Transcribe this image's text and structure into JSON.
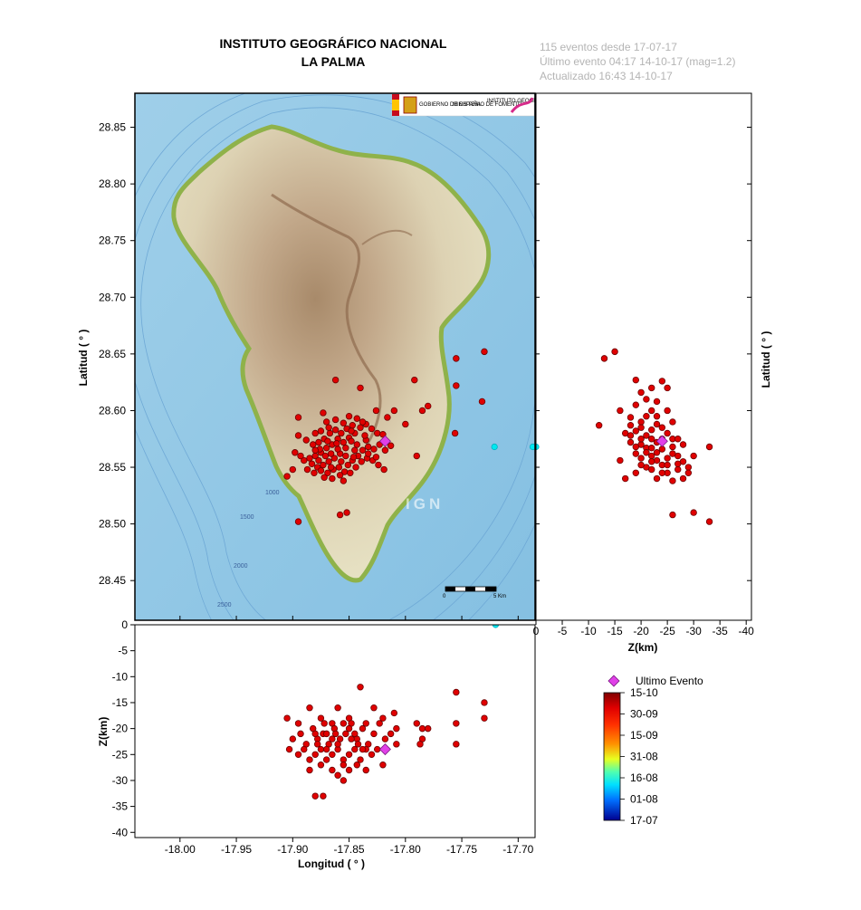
{
  "header": {
    "title_line1": "INSTITUTO GEOGRÁFICO NACIONAL",
    "title_line2": "LA PALMA",
    "info_line1": "115 eventos desde 17-07-17",
    "info_line2": "Último evento 04:17 14-10-17  (mag=1.2)",
    "info_line3": "Actualizado   16:43  14-10-17"
  },
  "map": {
    "watermark": "IGN",
    "scale_start": "0",
    "scale_end": "5 Km",
    "contour_labels": [
      "200",
      "1000",
      "1500",
      "2000",
      "2500"
    ],
    "logo": {
      "gobierno": "GOBIERNO DE ESPAÑA",
      "ministerio": "MINISTERIO DE FOMENTO",
      "instituto": "INSTITUTO GEOGRÁFICO NACIONAL"
    }
  },
  "legend": {
    "last_event_label": "Ultimo Evento",
    "last_event_color": "#e040e8",
    "colorbar_labels": [
      "15-10",
      "30-09",
      "15-09",
      "31-08",
      "16-08",
      "01-08",
      "17-07"
    ],
    "colorbar_colors": [
      "#800000",
      "#ff0000",
      "#ff8000",
      "#ffff00",
      "#00ffff",
      "#0080ff",
      "#0000a0"
    ]
  },
  "chart_data": [
    {
      "type": "scatter",
      "panel": "map",
      "xlabel": "",
      "ylabel": "Latitud ( ° )",
      "xlim": [
        -18.04,
        -17.685
      ],
      "ylim": [
        28.415,
        28.88
      ],
      "yticks": [
        "28.45",
        "28.50",
        "28.55",
        "28.60",
        "28.65",
        "28.70",
        "28.75",
        "28.80",
        "28.85"
      ],
      "points": [
        [
          -17.895,
          28.594
        ],
        [
          -17.873,
          28.598
        ],
        [
          -17.862,
          28.627
        ],
        [
          -17.84,
          28.62
        ],
        [
          -17.826,
          28.6
        ],
        [
          -17.816,
          28.594
        ],
        [
          -17.81,
          28.6
        ],
        [
          -17.792,
          28.627
        ],
        [
          -17.785,
          28.6
        ],
        [
          -17.78,
          28.604
        ],
        [
          -17.755,
          28.646
        ],
        [
          -17.755,
          28.622
        ],
        [
          -17.73,
          28.652
        ],
        [
          -17.732,
          28.608
        ],
        [
          -17.756,
          28.58
        ],
        [
          -17.721,
          28.568
        ],
        [
          -17.687,
          28.568
        ],
        [
          -17.855,
          28.589
        ],
        [
          -17.847,
          28.587
        ],
        [
          -17.84,
          28.585
        ],
        [
          -17.835,
          28.588
        ],
        [
          -17.83,
          28.584
        ],
        [
          -17.825,
          28.58
        ],
        [
          -17.82,
          28.579
        ],
        [
          -17.845,
          28.58
        ],
        [
          -17.85,
          28.576
        ],
        [
          -17.855,
          28.572
        ],
        [
          -17.86,
          28.575
        ],
        [
          -17.865,
          28.57
        ],
        [
          -17.87,
          28.567
        ],
        [
          -17.875,
          28.563
        ],
        [
          -17.88,
          28.56
        ],
        [
          -17.885,
          28.558
        ],
        [
          -17.89,
          28.556
        ],
        [
          -17.893,
          28.56
        ],
        [
          -17.898,
          28.563
        ],
        [
          -17.895,
          28.578
        ],
        [
          -17.888,
          28.574
        ],
        [
          -17.882,
          28.57
        ],
        [
          -17.877,
          28.572
        ],
        [
          -17.872,
          28.575
        ],
        [
          -17.867,
          28.58
        ],
        [
          -17.862,
          28.583
        ],
        [
          -17.857,
          28.58
        ],
        [
          -17.852,
          28.584
        ],
        [
          -17.848,
          28.573
        ],
        [
          -17.843,
          28.57
        ],
        [
          -17.838,
          28.565
        ],
        [
          -17.833,
          28.568
        ],
        [
          -17.828,
          28.566
        ],
        [
          -17.823,
          28.57
        ],
        [
          -17.818,
          28.565
        ],
        [
          -17.813,
          28.569
        ],
        [
          -17.835,
          28.574
        ],
        [
          -17.842,
          28.56
        ],
        [
          -17.847,
          28.556
        ],
        [
          -17.853,
          28.56
        ],
        [
          -17.858,
          28.562
        ],
        [
          -17.863,
          28.558
        ],
        [
          -17.868,
          28.555
        ],
        [
          -17.873,
          28.552
        ],
        [
          -17.878,
          28.55
        ],
        [
          -17.883,
          28.553
        ],
        [
          -17.887,
          28.548
        ],
        [
          -17.881,
          28.545
        ],
        [
          -17.875,
          28.547
        ],
        [
          -17.869,
          28.545
        ],
        [
          -17.864,
          28.548
        ],
        [
          -17.859,
          28.55
        ],
        [
          -17.854,
          28.546
        ],
        [
          -17.849,
          28.545
        ],
        [
          -17.844,
          28.55
        ],
        [
          -17.839,
          28.555
        ],
        [
          -17.834,
          28.558
        ],
        [
          -17.829,
          28.556
        ],
        [
          -17.824,
          28.552
        ],
        [
          -17.819,
          28.548
        ],
        [
          -17.86,
          28.566
        ],
        [
          -17.866,
          28.562
        ],
        [
          -17.871,
          28.56
        ],
        [
          -17.876,
          28.566
        ],
        [
          -17.88,
          28.58
        ],
        [
          -17.87,
          28.59
        ],
        [
          -17.862,
          28.592
        ],
        [
          -17.85,
          28.595
        ],
        [
          -17.843,
          28.593
        ],
        [
          -17.838,
          28.59
        ],
        [
          -17.845,
          28.565
        ],
        [
          -17.857,
          28.555
        ],
        [
          -17.865,
          28.54
        ],
        [
          -17.855,
          28.538
        ],
        [
          -17.9,
          28.548
        ],
        [
          -17.905,
          28.542
        ],
        [
          -17.895,
          28.502
        ],
        [
          -17.858,
          28.508
        ],
        [
          -17.852,
          28.51
        ],
        [
          -17.8,
          28.588
        ],
        [
          -17.79,
          28.56
        ],
        [
          -17.875,
          28.582
        ],
        [
          -17.868,
          28.585
        ],
        [
          -17.88,
          28.565
        ],
        [
          -17.866,
          28.55
        ],
        [
          -17.851,
          28.552
        ],
        [
          -17.872,
          28.541
        ],
        [
          -17.858,
          28.543
        ],
        [
          -17.846,
          28.559
        ],
        [
          -17.836,
          28.578
        ],
        [
          -17.826,
          28.559
        ],
        [
          -17.861,
          28.571
        ],
        [
          -17.869,
          28.573
        ],
        [
          -17.853,
          28.567
        ],
        [
          -17.877,
          28.556
        ],
        [
          -17.848,
          28.582
        ],
        [
          -17.833,
          28.562
        ]
      ],
      "last_event": [
        -17.818,
        28.573
      ]
    },
    {
      "type": "scatter",
      "panel": "latitude_depth",
      "xlabel": "Z(km)",
      "ylabel": "Latitud ( ° )",
      "xlim": [
        0,
        -41
      ],
      "ylim": [
        28.415,
        28.88
      ],
      "xticks": [
        "0",
        "-5",
        "-10",
        "-15",
        "-20",
        "-25",
        "-30",
        "-35",
        "-40"
      ],
      "points": [
        [
          -13,
          28.646
        ],
        [
          -15,
          28.652
        ],
        [
          -19,
          28.627
        ],
        [
          -24,
          28.626
        ],
        [
          -12,
          28.587
        ],
        [
          -16,
          28.6
        ],
        [
          -18,
          28.594
        ],
        [
          -22,
          28.6
        ],
        [
          -20,
          28.59
        ],
        [
          -23,
          28.595
        ],
        [
          -26,
          28.59
        ],
        [
          -17,
          28.58
        ],
        [
          -19,
          28.582
        ],
        [
          -21,
          28.578
        ],
        [
          -22,
          28.583
        ],
        [
          -24,
          28.585
        ],
        [
          -25,
          28.58
        ],
        [
          -18,
          28.572
        ],
        [
          -20,
          28.57
        ],
        [
          -21,
          28.567
        ],
        [
          -23,
          28.572
        ],
        [
          -24,
          28.566
        ],
        [
          -26,
          28.568
        ],
        [
          -19,
          28.562
        ],
        [
          -20,
          28.558
        ],
        [
          -22,
          28.56
        ],
        [
          -23,
          28.556
        ],
        [
          -25,
          28.558
        ],
        [
          -27,
          28.56
        ],
        [
          -28,
          28.555
        ],
        [
          -21,
          28.55
        ],
        [
          -22,
          28.548
        ],
        [
          -24,
          28.552
        ],
        [
          -25,
          28.545
        ],
        [
          -27,
          28.548
        ],
        [
          -29,
          28.55
        ],
        [
          -23,
          28.54
        ],
        [
          -26,
          28.538
        ],
        [
          -28,
          28.54
        ],
        [
          -16,
          28.556
        ],
        [
          -17,
          28.54
        ],
        [
          -19,
          28.545
        ],
        [
          -20,
          28.575
        ],
        [
          -18,
          28.587
        ],
        [
          -22,
          28.575
        ],
        [
          -26,
          28.575
        ],
        [
          -21,
          28.61
        ],
        [
          -23,
          28.608
        ],
        [
          -20,
          28.616
        ],
        [
          -22,
          28.62
        ],
        [
          -25,
          28.6
        ],
        [
          -19,
          28.605
        ],
        [
          -24,
          28.545
        ],
        [
          -21,
          28.563
        ],
        [
          -27,
          28.575
        ],
        [
          -28,
          28.57
        ],
        [
          -30,
          28.56
        ],
        [
          -33,
          28.568
        ],
        [
          -26,
          28.508
        ],
        [
          -30,
          28.51
        ],
        [
          -33,
          28.502
        ],
        [
          -19,
          28.568
        ],
        [
          -20,
          28.552
        ],
        [
          -22,
          28.567
        ],
        [
          -23,
          28.563
        ],
        [
          -24,
          28.575
        ],
        [
          -26,
          28.562
        ],
        [
          -22,
          28.555
        ],
        [
          -20,
          28.585
        ],
        [
          -23,
          28.588
        ],
        [
          -25,
          28.552
        ],
        [
          -27,
          28.553
        ],
        [
          -18,
          28.578
        ],
        [
          -21,
          28.595
        ],
        [
          -25,
          28.62
        ],
        [
          -29,
          28.545
        ],
        [
          0,
          28.568
        ]
      ],
      "last_event": [
        -24,
        28.573
      ]
    },
    {
      "type": "scatter",
      "panel": "longitude_depth",
      "xlabel": "Longitud ( ° )",
      "ylabel": "Z(km)",
      "xlim": [
        -18.04,
        -17.685
      ],
      "ylim": [
        0,
        -41
      ],
      "xticks": [
        "-18.00",
        "-17.95",
        "-17.90",
        "-17.85",
        "-17.80",
        "-17.75",
        "-17.70"
      ],
      "yticks": [
        "0",
        "-5",
        "-10",
        "-15",
        "-20",
        "-25",
        "-30",
        "-35",
        "-40"
      ],
      "points": [
        [
          -17.905,
          -18
        ],
        [
          -17.895,
          -19
        ],
        [
          -17.885,
          -16
        ],
        [
          -17.875,
          -18
        ],
        [
          -17.865,
          -19
        ],
        [
          -17.86,
          -16
        ],
        [
          -17.85,
          -18
        ],
        [
          -17.84,
          -12
        ],
        [
          -17.835,
          -19
        ],
        [
          -17.828,
          -16
        ],
        [
          -17.82,
          -18
        ],
        [
          -17.81,
          -17
        ],
        [
          -17.808,
          -20
        ],
        [
          -17.9,
          -22
        ],
        [
          -17.893,
          -21
        ],
        [
          -17.888,
          -23
        ],
        [
          -17.882,
          -20
        ],
        [
          -17.878,
          -22
        ],
        [
          -17.873,
          -21
        ],
        [
          -17.868,
          -23
        ],
        [
          -17.863,
          -20
        ],
        [
          -17.858,
          -22
        ],
        [
          -17.853,
          -21
        ],
        [
          -17.848,
          -19
        ],
        [
          -17.843,
          -22
        ],
        [
          -17.838,
          -20
        ],
        [
          -17.833,
          -23
        ],
        [
          -17.828,
          -21
        ],
        [
          -17.823,
          -19
        ],
        [
          -17.818,
          -22
        ],
        [
          -17.813,
          -21
        ],
        [
          -17.808,
          -23
        ],
        [
          -17.895,
          -25
        ],
        [
          -17.89,
          -24
        ],
        [
          -17.885,
          -26
        ],
        [
          -17.88,
          -25
        ],
        [
          -17.875,
          -24
        ],
        [
          -17.87,
          -26
        ],
        [
          -17.865,
          -25
        ],
        [
          -17.86,
          -24
        ],
        [
          -17.855,
          -26
        ],
        [
          -17.85,
          -25
        ],
        [
          -17.845,
          -24
        ],
        [
          -17.84,
          -26
        ],
        [
          -17.835,
          -24
        ],
        [
          -17.83,
          -25
        ],
        [
          -17.825,
          -24
        ],
        [
          -17.903,
          -24
        ],
        [
          -17.885,
          -28
        ],
        [
          -17.875,
          -27
        ],
        [
          -17.865,
          -28
        ],
        [
          -17.855,
          -27
        ],
        [
          -17.85,
          -28
        ],
        [
          -17.86,
          -29
        ],
        [
          -17.855,
          -30
        ],
        [
          -17.843,
          -27
        ],
        [
          -17.835,
          -28
        ],
        [
          -17.82,
          -27
        ],
        [
          -17.88,
          -33
        ],
        [
          -17.873,
          -33
        ],
        [
          -17.79,
          -19
        ],
        [
          -17.785,
          -20
        ],
        [
          -17.78,
          -20
        ],
        [
          -17.785,
          -22
        ],
        [
          -17.787,
          -23
        ],
        [
          -17.755,
          -13
        ],
        [
          -17.755,
          -19
        ],
        [
          -17.755,
          -23
        ],
        [
          -17.73,
          -15
        ],
        [
          -17.73,
          -18
        ],
        [
          -17.87,
          -21
        ],
        [
          -17.865,
          -22
        ],
        [
          -17.86,
          -23
        ],
        [
          -17.87,
          -24
        ],
        [
          -17.878,
          -23
        ],
        [
          -17.848,
          -22
        ],
        [
          -17.842,
          -23
        ],
        [
          -17.838,
          -24
        ],
        [
          -17.85,
          -20
        ],
        [
          -17.862,
          -21
        ],
        [
          -17.855,
          -19
        ],
        [
          -17.88,
          -21
        ],
        [
          -17.872,
          -19
        ],
        [
          -17.845,
          -21
        ],
        [
          -17.72,
          0
        ]
      ],
      "last_event": [
        -17.818,
        -24
      ]
    }
  ]
}
